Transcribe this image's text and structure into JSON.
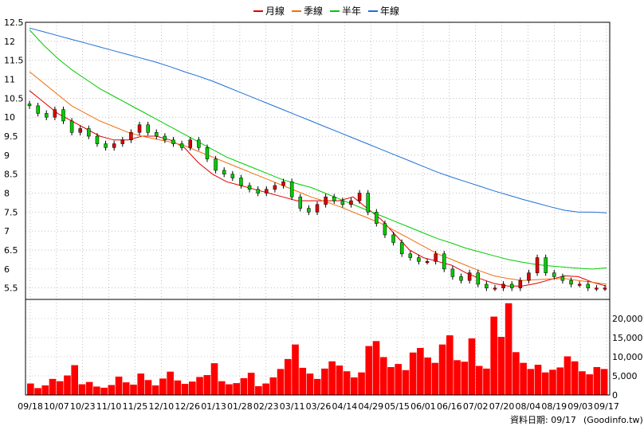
{
  "chart_data": {
    "type": "line",
    "legend_position": "top-center",
    "grid": true,
    "x_ticks": [
      "09/18",
      "10/07",
      "10/23",
      "11/10",
      "11/25",
      "12/10",
      "12/26",
      "01/13",
      "01/28",
      "02/23",
      "03/11",
      "03/26",
      "04/14",
      "04/29",
      "05/15",
      "06/01",
      "06/16",
      "07/02",
      "07/20",
      "08/04",
      "08/19",
      "09/03",
      "09/17"
    ],
    "price_axis": {
      "ylim": [
        5.2,
        12.5
      ],
      "ticks": [
        "12.5",
        "12",
        "11.5",
        "11",
        "10.5",
        "10",
        "9.5",
        "9",
        "8.5",
        "8",
        "7.5",
        "7",
        "6.5",
        "6",
        "5.5"
      ]
    },
    "volume_axis": {
      "ylim": [
        0,
        25000
      ],
      "ticks": [
        "20,000",
        "15,000",
        "10,000",
        "5,000",
        "0"
      ]
    },
    "series": [
      {
        "name": "月線",
        "color": "#e00000",
        "values": [
          10.7,
          10.4,
          10.1,
          9.9,
          9.7,
          9.5,
          9.4,
          9.4,
          9.5,
          9.5,
          9.4,
          9.2,
          8.8,
          8.5,
          8.3,
          8.2,
          8.1,
          8.0,
          7.9,
          7.8,
          7.8,
          7.8,
          7.8,
          7.9,
          7.6,
          7.3,
          6.9,
          6.5,
          6.3,
          6.2,
          6.1,
          5.9,
          5.75,
          5.62,
          5.55,
          5.55,
          5.62,
          5.72,
          5.82,
          5.8,
          5.65,
          5.55
        ]
      },
      {
        "name": "季線",
        "color": "#f07010",
        "values": [
          11.2,
          10.9,
          10.6,
          10.3,
          10.1,
          9.9,
          9.75,
          9.6,
          9.5,
          9.42,
          9.35,
          9.25,
          9.1,
          8.95,
          8.8,
          8.65,
          8.5,
          8.35,
          8.2,
          8.05,
          7.9,
          7.78,
          7.65,
          7.5,
          7.35,
          7.2,
          7.0,
          6.8,
          6.6,
          6.4,
          6.25,
          6.1,
          5.95,
          5.82,
          5.75,
          5.7,
          5.72,
          5.74,
          5.75,
          5.7,
          5.65,
          5.6
        ]
      },
      {
        "name": "半年",
        "color": "#00cc00",
        "values": [
          12.3,
          11.9,
          11.55,
          11.25,
          11.0,
          10.75,
          10.55,
          10.35,
          10.15,
          9.95,
          9.75,
          9.55,
          9.35,
          9.15,
          8.95,
          8.8,
          8.65,
          8.5,
          8.35,
          8.25,
          8.15,
          8.0,
          7.85,
          7.7,
          7.55,
          7.4,
          7.25,
          7.1,
          6.95,
          6.8,
          6.68,
          6.55,
          6.45,
          6.35,
          6.25,
          6.18,
          6.12,
          6.08,
          6.05,
          6.02,
          6.0,
          6.03
        ]
      },
      {
        "name": "年線",
        "color": "#1e6fd8",
        "values": [
          12.35,
          12.25,
          12.15,
          12.05,
          11.95,
          11.85,
          11.75,
          11.65,
          11.55,
          11.45,
          11.33,
          11.2,
          11.08,
          10.95,
          10.8,
          10.65,
          10.5,
          10.35,
          10.2,
          10.05,
          9.9,
          9.75,
          9.6,
          9.45,
          9.3,
          9.15,
          9.0,
          8.85,
          8.7,
          8.55,
          8.42,
          8.3,
          8.18,
          8.06,
          7.95,
          7.84,
          7.74,
          7.64,
          7.55,
          7.5,
          7.5,
          7.48
        ]
      }
    ],
    "candles_close": [
      10.3,
      10.1,
      10.0,
      10.2,
      9.9,
      9.6,
      9.7,
      9.5,
      9.3,
      9.2,
      9.3,
      9.4,
      9.6,
      9.8,
      9.6,
      9.5,
      9.4,
      9.3,
      9.2,
      9.4,
      9.2,
      8.9,
      8.6,
      8.5,
      8.4,
      8.2,
      8.1,
      8.0,
      8.1,
      8.2,
      8.3,
      7.9,
      7.6,
      7.5,
      7.7,
      7.9,
      7.8,
      7.7,
      7.8,
      8.0,
      7.5,
      7.2,
      6.9,
      6.7,
      6.4,
      6.3,
      6.2,
      6.2,
      6.4,
      6.0,
      5.8,
      5.7,
      5.9,
      5.6,
      5.5,
      5.5,
      5.6,
      5.5,
      5.7,
      5.9,
      6.3,
      5.9,
      5.8,
      5.7,
      5.6,
      5.6,
      5.5,
      5.5,
      5.5
    ],
    "volume": [
      3000,
      1800,
      2500,
      4200,
      3600,
      5100,
      7800,
      2800,
      3400,
      2200,
      1900,
      2600,
      4800,
      3300,
      2700,
      5600,
      3900,
      2500,
      4300,
      6100,
      3800,
      2900,
      3500,
      4700,
      5200,
      8300,
      3600,
      2800,
      3100,
      4400,
      5800,
      2300,
      3000,
      4600,
      6800,
      9400,
      13200,
      7100,
      5600,
      4200,
      6900,
      8800,
      7700,
      6200,
      4600,
      5900,
      12800,
      14100,
      9900,
      7300,
      8100,
      6500,
      11100,
      12300,
      9800,
      8400,
      13200,
      15600,
      9100,
      8700,
      14800,
      7600,
      6900,
      20500,
      15200,
      24000,
      11200,
      8400,
      6800,
      7900,
      5900,
      6600,
      7200,
      10100,
      8800,
      6200,
      5400,
      7300,
      6800
    ]
  },
  "legend": [
    {
      "label": "月線",
      "color": "#e00000"
    },
    {
      "label": "季線",
      "color": "#f07010"
    },
    {
      "label": "半年",
      "color": "#00cc00"
    },
    {
      "label": "年線",
      "color": "#1e6fd8"
    }
  ],
  "footer": {
    "date_text": "資料日期: 09/17",
    "source_text": "(Goodinfo.tw)"
  },
  "colors": {
    "up": "#e00000",
    "down": "#00cc00",
    "volume": "#ff0000",
    "grid": "#999999"
  }
}
